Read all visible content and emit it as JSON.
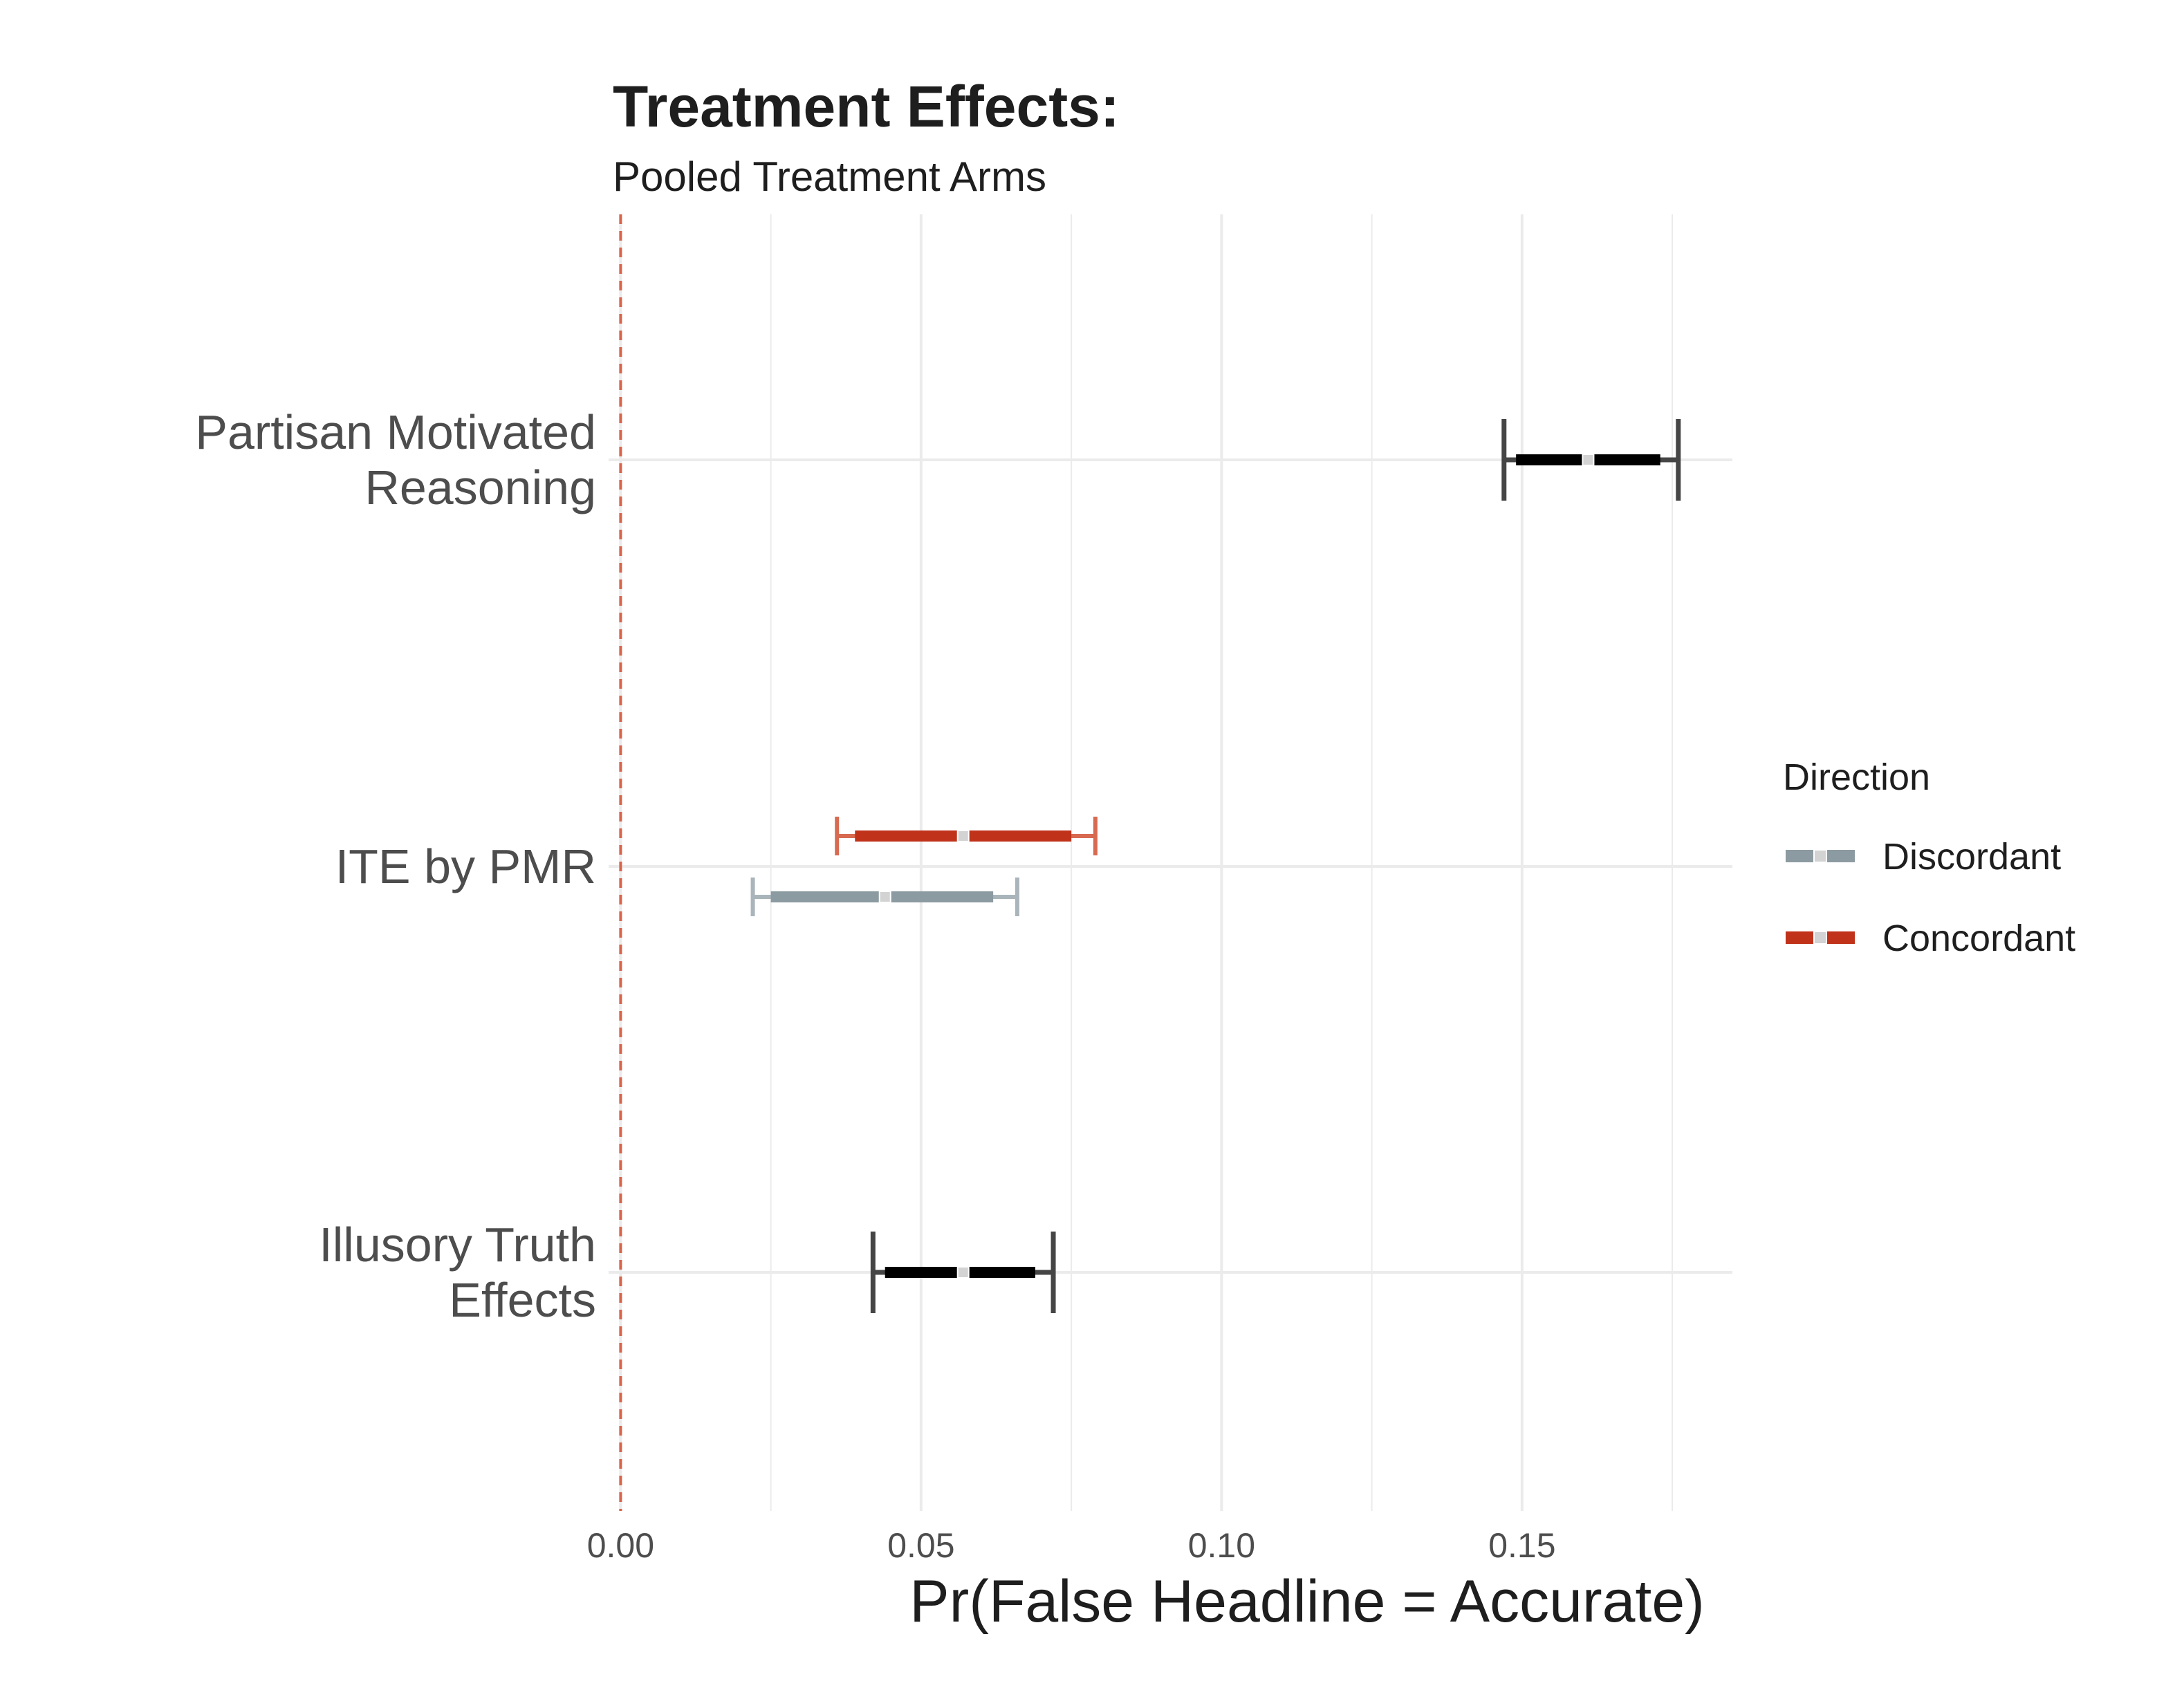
{
  "chart_data": {
    "type": "forest",
    "title": "Treatment Effects:",
    "subtitle": "Pooled Treatment Arms",
    "xlabel": "Pr(False Headline = Accurate)",
    "ylabel": "",
    "xlim": [
      -0.002,
      0.185
    ],
    "x_ticks": [
      0.0,
      0.05,
      0.1,
      0.15
    ],
    "x_tick_labels": [
      "0.00",
      "0.05",
      "0.10",
      "0.15"
    ],
    "reference_line": 0.0,
    "grid": true,
    "categories": [
      [
        "Partisan Motivated",
        "Reasoning"
      ],
      [
        "ITE by PMR"
      ],
      [
        "Illusory Truth",
        "Effects"
      ]
    ],
    "legend": {
      "title": "Direction",
      "position": "right",
      "items": [
        {
          "label": "Discordant",
          "color": "#8c9aa1"
        },
        {
          "label": "Concordant",
          "color": "#c0321a"
        }
      ]
    },
    "estimates": [
      {
        "category": 0,
        "group": "",
        "estimate": 0.161,
        "ci_inner": [
          0.149,
          0.173
        ],
        "ci_outer": [
          0.147,
          0.176
        ]
      },
      {
        "category": 1,
        "group": "Concordant",
        "estimate": 0.057,
        "ci_inner": [
          0.039,
          0.075
        ],
        "ci_outer": [
          0.036,
          0.079
        ]
      },
      {
        "category": 1,
        "group": "Discordant",
        "estimate": 0.044,
        "ci_inner": [
          0.025,
          0.062
        ],
        "ci_outer": [
          0.022,
          0.066
        ]
      },
      {
        "category": 2,
        "group": "",
        "estimate": 0.057,
        "ci_inner": [
          0.044,
          0.069
        ],
        "ci_outer": [
          0.042,
          0.072
        ]
      }
    ],
    "colors": {
      "default_inner": "#000000",
      "default_outer": "#454545",
      "Concordant_inner": "#c0321a",
      "Concordant_outer": "#d86a52",
      "Discordant_inner": "#8c9aa1",
      "Discordant_outer": "#a9b5ba",
      "reference": "#d9644a",
      "grid": "#ebebeb",
      "point_fill": "#d3d3d3"
    }
  }
}
